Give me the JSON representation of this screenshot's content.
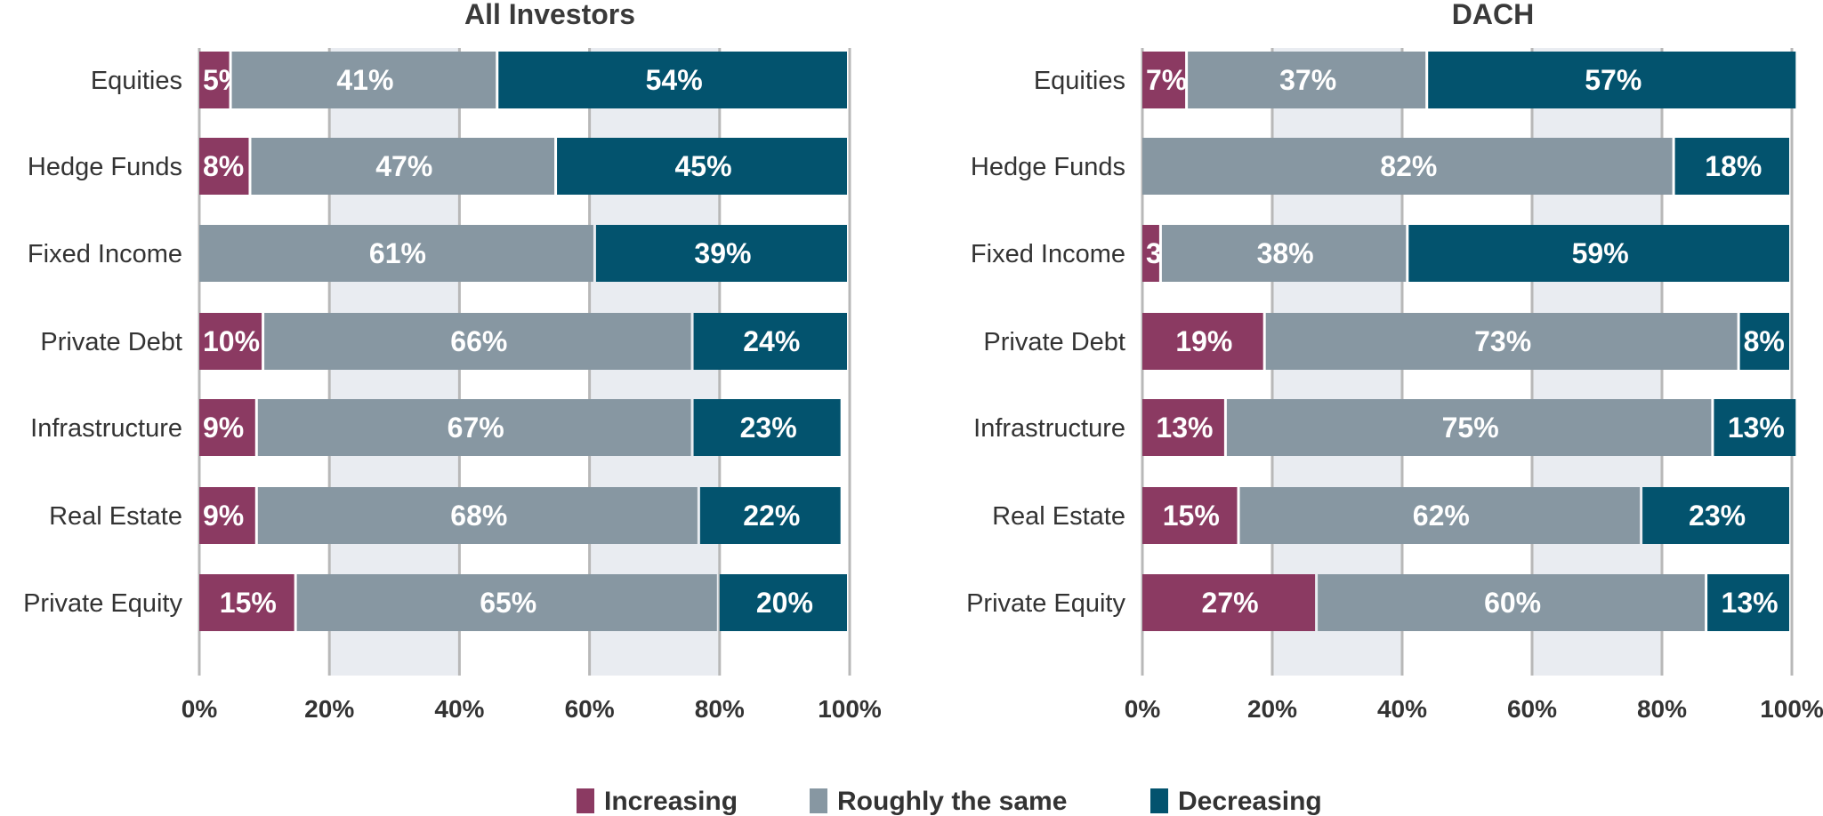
{
  "chart_data": [
    {
      "type": "bar",
      "orientation": "horizontal",
      "stacked": true,
      "title": "All Investors",
      "categories": [
        "Equities",
        "Hedge Funds",
        "Fixed Income",
        "Private Debt",
        "Infrastructure",
        "Real Estate",
        "Private Equity"
      ],
      "series": [
        {
          "name": "Increasing",
          "values": [
            5,
            8,
            0,
            10,
            9,
            9,
            15
          ]
        },
        {
          "name": "Roughly the same",
          "values": [
            41,
            47,
            61,
            66,
            67,
            68,
            65
          ]
        },
        {
          "name": "Decreasing",
          "values": [
            54,
            45,
            39,
            24,
            23,
            22,
            20
          ]
        }
      ],
      "xlim": [
        0,
        100
      ],
      "xticks": [
        "0%",
        "20%",
        "40%",
        "60%",
        "80%",
        "100%"
      ]
    },
    {
      "type": "bar",
      "orientation": "horizontal",
      "stacked": true,
      "title": "DACH",
      "categories": [
        "Equities",
        "Hedge Funds",
        "Fixed Income",
        "Private Debt",
        "Infrastructure",
        "Real Estate",
        "Private Equity"
      ],
      "series": [
        {
          "name": "Increasing",
          "values": [
            7,
            0,
            3,
            19,
            13,
            15,
            27
          ]
        },
        {
          "name": "Roughly the same",
          "values": [
            37,
            82,
            38,
            73,
            75,
            62,
            60
          ]
        },
        {
          "name": "Decreasing",
          "values": [
            57,
            18,
            59,
            8,
            13,
            23,
            13
          ]
        }
      ],
      "xlim": [
        0,
        100
      ],
      "xticks": [
        "0%",
        "20%",
        "40%",
        "60%",
        "80%",
        "100%"
      ]
    }
  ],
  "legend": {
    "position": "bottom",
    "items": [
      {
        "name": "Increasing",
        "color": "#8b3a62"
      },
      {
        "name": "Roughly the same",
        "color": "#8797a2"
      },
      {
        "name": "Decreasing",
        "color": "#03536e"
      }
    ]
  },
  "colors": {
    "increasing": "#8b3a62",
    "same": "#8797a2",
    "decreasing": "#03536e",
    "band": "#e9ecf1",
    "gridline": "#b8b8b8"
  }
}
